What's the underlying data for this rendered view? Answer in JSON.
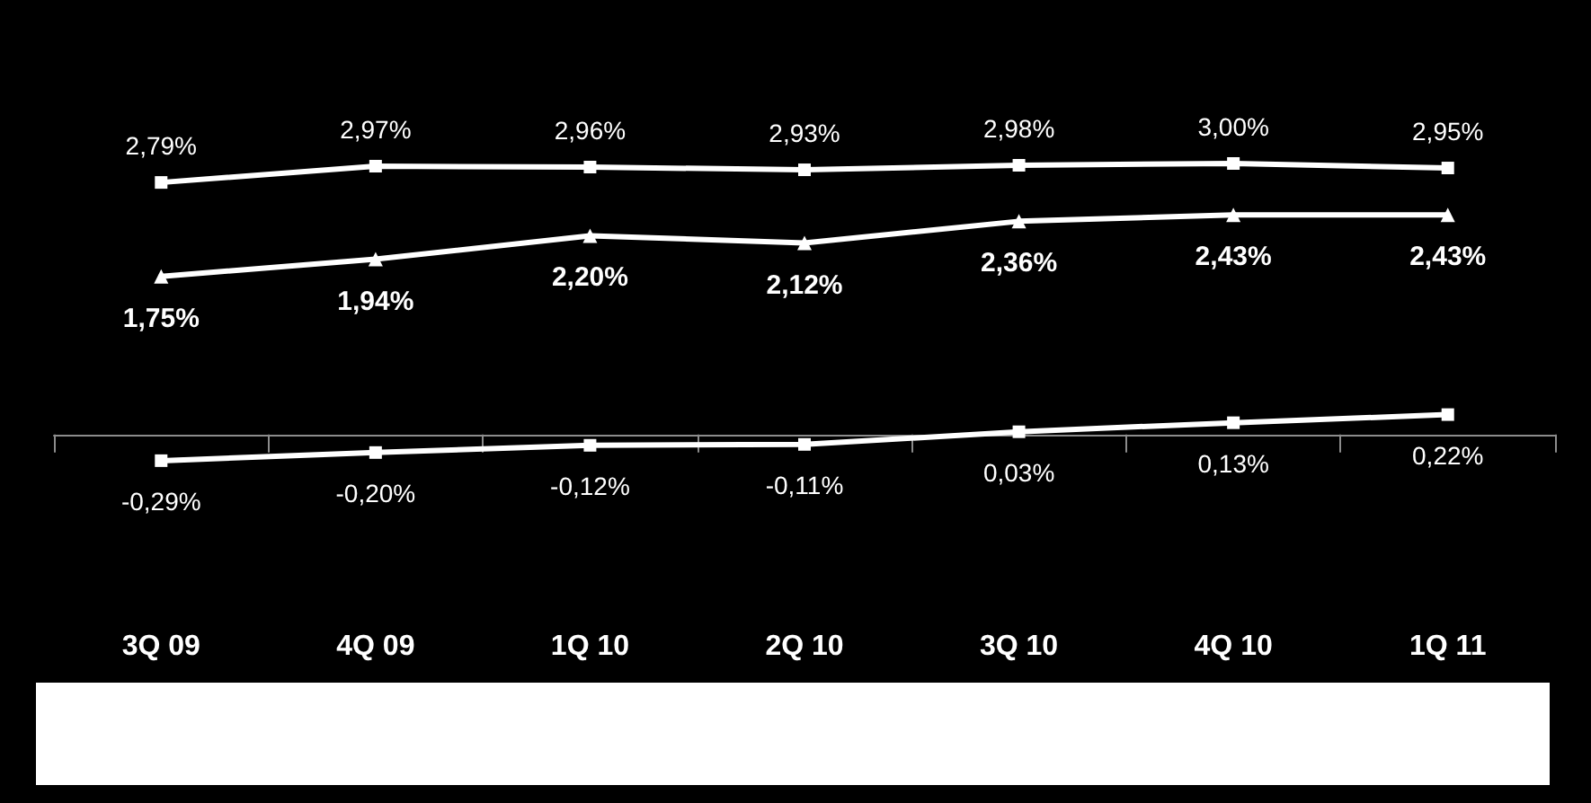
{
  "chart_data": {
    "type": "line",
    "categories": [
      "3Q 09",
      "4Q 09",
      "1Q 10",
      "2Q 10",
      "3Q 10",
      "4Q 10",
      "1Q 11"
    ],
    "line_style": "solid",
    "series": [
      {
        "color": "#ffffff",
        "marker": "square",
        "values": [
          2.79,
          2.97,
          2.96,
          2.93,
          2.98,
          3.0,
          2.95
        ],
        "value_labels": [
          "2,79%",
          "2,97%",
          "2,96%",
          "2,93%",
          "2,98%",
          "3,00%",
          "2,95%"
        ]
      },
      {
        "color": "#ffffff",
        "marker": "triangle",
        "values": [
          1.75,
          1.94,
          2.2,
          2.12,
          2.36,
          2.43,
          2.43
        ],
        "value_labels": [
          "1,75%",
          "1,94%",
          "2,20%",
          "2,12%",
          "2,36%",
          "2,43%",
          "2,43%"
        ]
      },
      {
        "color": "#ffffff",
        "marker": "square",
        "values": [
          -0.29,
          -0.2,
          -0.12,
          -0.11,
          0.03,
          0.13,
          0.22
        ],
        "value_labels": [
          "-0,29%",
          "-0,20%",
          "-0,12%",
          "-0,11%",
          "0,03%",
          "0,13%",
          "0,22%"
        ]
      }
    ]
  }
}
